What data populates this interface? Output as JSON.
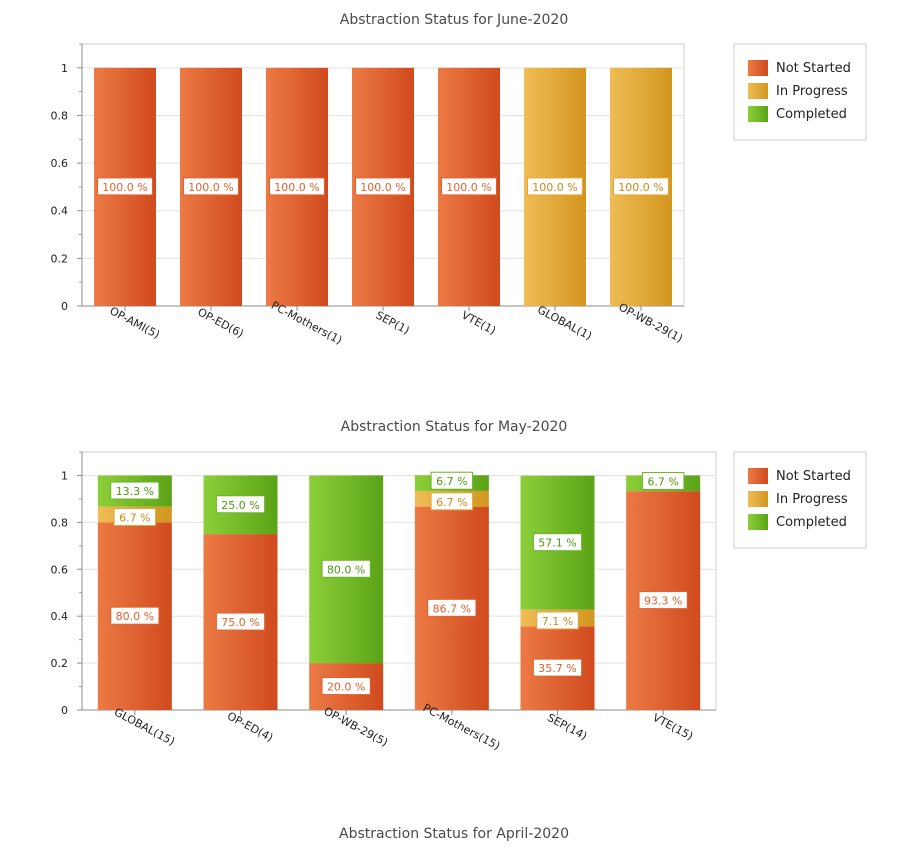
{
  "colors": {
    "not_started": "#e0622f",
    "in_progress": "#e2a53b",
    "completed": "#6cb421"
  },
  "legend": [
    "Not Started",
    "In Progress",
    "Completed"
  ],
  "chart_data": [
    {
      "type": "bar",
      "stacked": true,
      "title": "Abstraction Status for June-2020",
      "categories": [
        "OP-AMI(5)",
        "OP-ED(6)",
        "PC-Mothers(1)",
        "SEP(1)",
        "VTE(1)",
        "GLOBAL(1)",
        "OP-WB-29(1)"
      ],
      "series": [
        {
          "name": "Not Started",
          "values": [
            1,
            1,
            1,
            1,
            1,
            0,
            0
          ],
          "labels": [
            "100.0 %",
            "100.0 %",
            "100.0 %",
            "100.0 %",
            "100.0 %",
            "",
            ""
          ]
        },
        {
          "name": "In Progress",
          "values": [
            0,
            0,
            0,
            0,
            0,
            1,
            1
          ],
          "labels": [
            "",
            "",
            "",
            "",
            "",
            "100.0 %",
            "100.0 %"
          ]
        },
        {
          "name": "Completed",
          "values": [
            0,
            0,
            0,
            0,
            0,
            0,
            0
          ],
          "labels": [
            "",
            "",
            "",
            "",
            "",
            "",
            ""
          ]
        }
      ],
      "yticks": [
        "0",
        "0.2",
        "0.4",
        "0.6",
        "0.8",
        "1"
      ],
      "ylim": [
        0,
        1.1
      ],
      "legend_position": "top-right",
      "grid": true
    },
    {
      "type": "bar",
      "stacked": true,
      "title": "Abstraction Status for May-2020",
      "categories": [
        "GLOBAL(15)",
        "OP-ED(4)",
        "OP-WB-29(5)",
        "PC-Mothers(15)",
        "SEP(14)",
        "VTE(15)"
      ],
      "series": [
        {
          "name": "Not Started",
          "values": [
            0.8,
            0.75,
            0.2,
            0.867,
            0.357,
            0.933
          ],
          "labels": [
            "80.0 %",
            "75.0 %",
            "20.0 %",
            "86.7 %",
            "35.7 %",
            "93.3 %"
          ]
        },
        {
          "name": "In Progress",
          "values": [
            0.067,
            0,
            0,
            0.067,
            0.071,
            0
          ],
          "labels": [
            "6.7 %",
            "",
            "",
            "6.7 %",
            "7.1 %",
            ""
          ]
        },
        {
          "name": "Completed",
          "values": [
            0.133,
            0.25,
            0.8,
            0.067,
            0.571,
            0.067
          ],
          "labels": [
            "13.3 %",
            "25.0 %",
            "80.0 %",
            "6.7 %",
            "57.1 %",
            "6.7 %"
          ]
        }
      ],
      "yticks": [
        "0",
        "0.2",
        "0.4",
        "0.6",
        "0.8",
        "1"
      ],
      "ylim": [
        0,
        1.1
      ],
      "legend_position": "top-right",
      "grid": true
    },
    {
      "type": "bar",
      "stacked": true,
      "title": "Abstraction Status for April-2020"
    }
  ]
}
